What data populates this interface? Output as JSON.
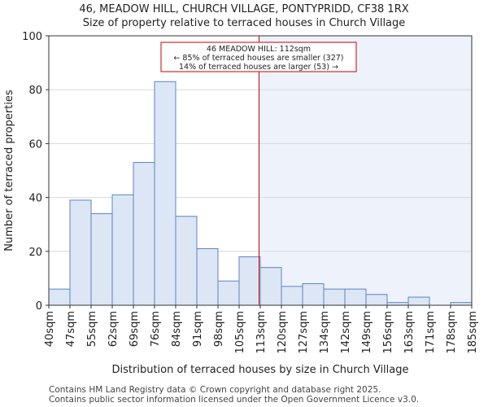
{
  "chart_data": {
    "type": "bar",
    "title_line1": "46, MEADOW HILL, CHURCH VILLAGE, PONTYPRIDD, CF38 1RX",
    "title_line2": "Size of property relative to terraced houses in Church Village",
    "xlabel": "Distribution of terraced houses by size in Church Village",
    "ylabel": "Number of terraced properties",
    "ylim": [
      0,
      100
    ],
    "yticks": [
      0,
      20,
      40,
      60,
      80,
      100
    ],
    "bin_labels": [
      "40sqm",
      "47sqm",
      "55sqm",
      "62sqm",
      "69sqm",
      "76sqm",
      "84sqm",
      "91sqm",
      "98sqm",
      "105sqm",
      "113sqm",
      "120sqm",
      "127sqm",
      "134sqm",
      "142sqm",
      "149sqm",
      "156sqm",
      "163sqm",
      "171sqm",
      "178sqm",
      "185sqm"
    ],
    "values": [
      6,
      39,
      34,
      41,
      53,
      83,
      33,
      21,
      9,
      18,
      14,
      7,
      8,
      6,
      6,
      4,
      1,
      3,
      0,
      1
    ],
    "property_bin_position": 10,
    "annotation": {
      "line1": "46 MEADOW HILL: 112sqm",
      "line2": "← 85% of terraced houses are smaller (327)",
      "line3": "14% of terraced houses are larger (53) →"
    },
    "colors": {
      "bar_fill": "#dce6f5",
      "bar_stroke": "#5b84c4",
      "highlight_bg": "#eef2fb",
      "marker": "#cc0000",
      "grid": "#d9d9d9"
    }
  },
  "footer": {
    "line1": "Contains HM Land Registry data © Crown copyright and database right 2025.",
    "line2": "Contains public sector information licensed under the Open Government Licence v3.0."
  }
}
